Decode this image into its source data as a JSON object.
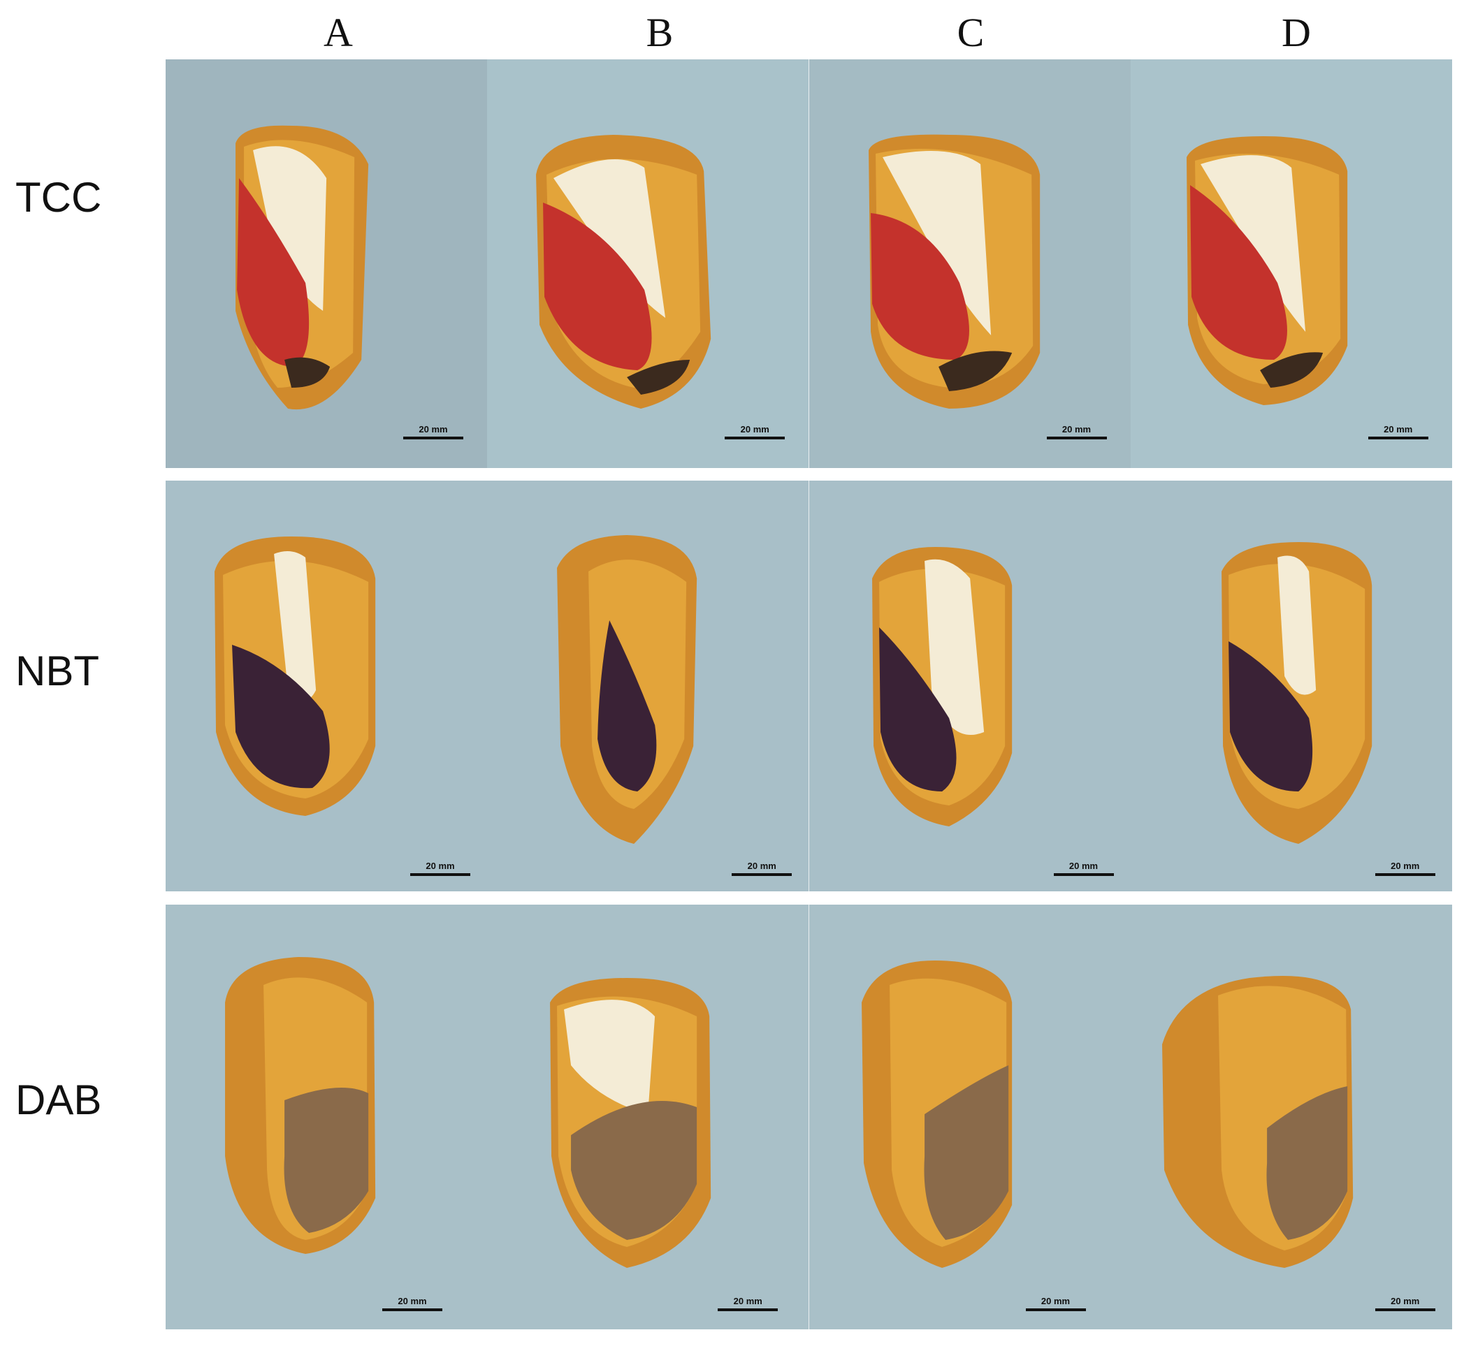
{
  "columns": [
    "A",
    "B",
    "C",
    "D"
  ],
  "rows": [
    {
      "label": "TCC",
      "stain": "tcc",
      "panel_colors": [
        "#9fb5be",
        "#a9c2ca",
        "#a4bbc3",
        "#aac3cb"
      ]
    },
    {
      "label": "NBT",
      "stain": "nbt",
      "panel_colors": [
        "#a8bfc8",
        "#a8bfc8",
        "#a8bfc8",
        "#a8bfc8"
      ]
    },
    {
      "label": "DAB",
      "stain": "dab",
      "panel_colors": [
        "#a9c0c8",
        "#a9c0c8",
        "#a9c0c8",
        "#a9c0c8"
      ]
    }
  ],
  "scale_bar_label": "20 mm",
  "stain_colors": {
    "tcc": "#c4322c",
    "nbt": "#3a2236",
    "dab": "#8a6a4a",
    "endosperm": "#e3a43a",
    "floury": "#f4ecd6",
    "pericarp": "#d08a2c"
  }
}
